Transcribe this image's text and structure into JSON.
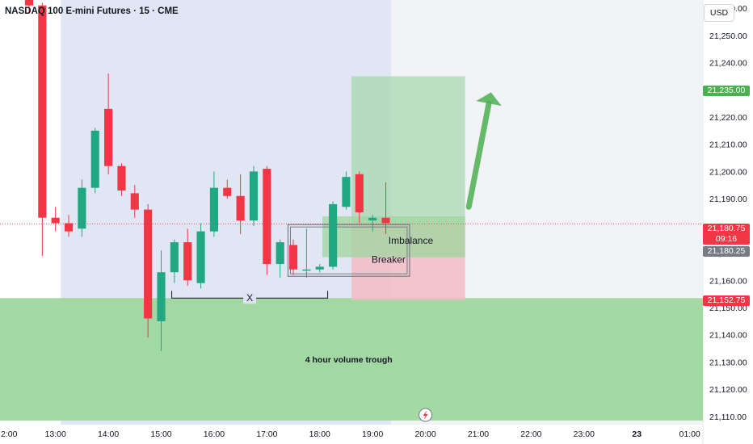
{
  "header": {
    "title": "NASDAQ 100 E-mini Futures · 15 · CME",
    "currency_button": "USD"
  },
  "colors": {
    "up": "#22a783",
    "down": "#f23645",
    "axis_text": "#131722",
    "grid_bg": "#f0f3fa",
    "session_shade": "#dde3f3",
    "trough_zone": "#9fd79f",
    "long_target": "#a9d7b0",
    "long_stop": "#f2bcc4",
    "imbalance": "#9fd69f",
    "arrow": "#4caf50",
    "last_price_tag": "#f23645",
    "target_tag": "#4caf50",
    "breaker_tag": "#787b86"
  },
  "price_tags": {
    "target": "21,235.00",
    "last_price": "21,180.75",
    "countdown": "09:16",
    "breaker_level": "21,180.25",
    "stop": "21,152.75"
  },
  "annotations": {
    "imbalance": "Imbalance",
    "breaker": "Breaker",
    "x_mark": "X",
    "volume_trough": "4 hour volume trough"
  },
  "chart_data": {
    "type": "candlestick",
    "title": "NASDAQ 100 E-mini Futures · 15 · CME",
    "timeframe": "15",
    "exchange": "CME",
    "currency": "USD",
    "y_range": [
      21107,
      21263
    ],
    "y_ticks": [
      {
        "value": 21110,
        "label": "21,110.00"
      },
      {
        "value": 21120,
        "label": "21,120.00"
      },
      {
        "value": 21130,
        "label": "21,130.00"
      },
      {
        "value": 21140,
        "label": "21,140.00"
      },
      {
        "value": 21150,
        "label": "21,150.00"
      },
      {
        "value": 21160,
        "label": "21,160.00"
      },
      {
        "value": 21170,
        "label": "21,170.00"
      },
      {
        "value": 21180,
        "label": "21,180.00"
      },
      {
        "value": 21190,
        "label": "21,190.00"
      },
      {
        "value": 21200,
        "label": "21,200.00"
      },
      {
        "value": 21210,
        "label": "21,210.00"
      },
      {
        "value": 21220,
        "label": "21,220.00"
      },
      {
        "value": 21230,
        "label": "21,230.00"
      },
      {
        "value": 21240,
        "label": "21,240.00"
      },
      {
        "value": 21250,
        "label": "21,250.00"
      },
      {
        "value": 21260,
        "label": "21,260.00"
      }
    ],
    "x_range": [
      11.95,
      25.25
    ],
    "x_ticks": [
      {
        "value": 12,
        "label": "2:00"
      },
      {
        "value": 13,
        "label": "13:00"
      },
      {
        "value": 14,
        "label": "14:00"
      },
      {
        "value": 15,
        "label": "15:00"
      },
      {
        "value": 16,
        "label": "16:00"
      },
      {
        "value": 17,
        "label": "17:00"
      },
      {
        "value": 18,
        "label": "18:00"
      },
      {
        "value": 19,
        "label": "19:00"
      },
      {
        "value": 20,
        "label": "20:00"
      },
      {
        "value": 21,
        "label": "21:00"
      },
      {
        "value": 22,
        "label": "22:00"
      },
      {
        "value": 23,
        "label": "23:00"
      },
      {
        "value": 24,
        "label": "23"
      },
      {
        "value": 25,
        "label": "01:00"
      }
    ],
    "candles": [
      {
        "t": 12.5,
        "o": 21268,
        "h": 21272,
        "l": 21258,
        "c": 21261
      },
      {
        "t": 12.75,
        "o": 21261,
        "h": 21262,
        "l": 21169,
        "c": 21183
      },
      {
        "t": 13.0,
        "o": 21183,
        "h": 21187,
        "l": 21178,
        "c": 21181
      },
      {
        "t": 13.25,
        "o": 21181,
        "h": 21184,
        "l": 21176,
        "c": 21178
      },
      {
        "t": 13.5,
        "o": 21179,
        "h": 21197,
        "l": 21176,
        "c": 21194
      },
      {
        "t": 13.75,
        "o": 21194,
        "h": 21216,
        "l": 21192,
        "c": 21215
      },
      {
        "t": 14.0,
        "o": 21223,
        "h": 21236,
        "l": 21199,
        "c": 21202
      },
      {
        "t": 14.25,
        "o": 21202,
        "h": 21203,
        "l": 21191,
        "c": 21193
      },
      {
        "t": 14.5,
        "o": 21192,
        "h": 21195,
        "l": 21183,
        "c": 21186
      },
      {
        "t": 14.75,
        "o": 21186,
        "h": 21188,
        "l": 21139,
        "c": 21146
      },
      {
        "t": 15.0,
        "o": 21145,
        "h": 21171,
        "l": 21134,
        "c": 21163
      },
      {
        "t": 15.25,
        "o": 21163,
        "h": 21175,
        "l": 21159,
        "c": 21174
      },
      {
        "t": 15.5,
        "o": 21174,
        "h": 21179,
        "l": 21158,
        "c": 21160
      },
      {
        "t": 15.75,
        "o": 21159,
        "h": 21181,
        "l": 21157,
        "c": 21178
      },
      {
        "t": 16.0,
        "o": 21178,
        "h": 21200,
        "l": 21176,
        "c": 21194
      },
      {
        "t": 16.25,
        "o": 21194,
        "h": 21197,
        "l": 21190,
        "c": 21191
      },
      {
        "t": 16.5,
        "o": 21191,
        "h": 21199,
        "l": 21177,
        "c": 21182
      },
      {
        "t": 16.75,
        "o": 21182,
        "h": 21202,
        "l": 21180,
        "c": 21200
      },
      {
        "t": 17.0,
        "o": 21201,
        "h": 21202,
        "l": 21162,
        "c": 21166
      },
      {
        "t": 17.25,
        "o": 21166,
        "h": 21175,
        "l": 21161,
        "c": 21174
      },
      {
        "t": 17.5,
        "o": 21173,
        "h": 21175,
        "l": 21162,
        "c": 21164
      },
      {
        "t": 17.75,
        "o": 21164,
        "h": 21179,
        "l": 21161,
        "c": 21164
      },
      {
        "t": 18.0,
        "o": 21164,
        "h": 21166,
        "l": 21163,
        "c": 21165
      },
      {
        "t": 18.25,
        "o": 21165,
        "h": 21189,
        "l": 21164,
        "c": 21188
      },
      {
        "t": 18.5,
        "o": 21187,
        "h": 21200,
        "l": 21186,
        "c": 21198
      },
      {
        "t": 18.75,
        "o": 21199,
        "h": 21200,
        "l": 21181,
        "c": 21185
      },
      {
        "t": 19.0,
        "o": 21182,
        "h": 21184,
        "l": 21178,
        "c": 21183
      },
      {
        "t": 19.25,
        "o": 21183,
        "h": 21196,
        "l": 21177,
        "c": 21181
      }
    ],
    "session_shade_range": {
      "from": 13.1,
      "to": 19.35
    },
    "volume_trough_zone": {
      "from": 21108.5,
      "to": 21153.5
    },
    "long_position": {
      "from_t": 18.6,
      "to_t": 20.75,
      "entry": 21180.5,
      "target": 21235,
      "stop": 21152.75
    },
    "imbalance_zone": {
      "from_t": 18.05,
      "to_t": 20.75,
      "top": 21183.5,
      "bottom": 21168.5
    },
    "breaker_box": {
      "from_t": 17.4,
      "to_t": 19.7,
      "top": 21180.5,
      "bottom": 21161.5
    },
    "x_bracket": {
      "from_t": 15.2,
      "to_t": 18.15,
      "price": 21153.5
    },
    "current_price_line": 21180.75
  }
}
